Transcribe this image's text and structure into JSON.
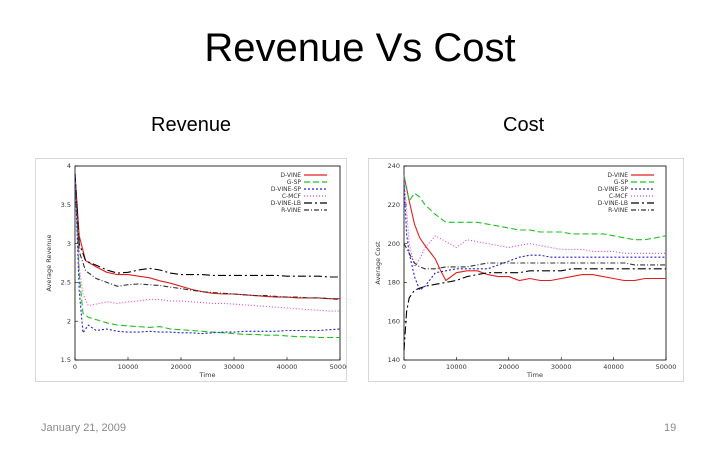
{
  "slide": {
    "title": "Revenue Vs Cost",
    "footer_date": "January 21, 2009",
    "page_number": "19"
  },
  "chart_data": [
    {
      "type": "line",
      "panel_title": "Revenue",
      "xlabel": "Time",
      "ylabel": "Average Revenue",
      "xlim": [
        0,
        50000
      ],
      "ylim": [
        1.5,
        4
      ],
      "xticks": [
        0,
        10000,
        20000,
        30000,
        40000,
        50000
      ],
      "xtick_labels": [
        "0",
        "10000",
        "20000",
        "30000",
        "40000",
        "50000"
      ],
      "yticks": [
        1.5,
        2,
        2.5,
        3,
        3.5,
        4
      ],
      "ytick_labels": [
        "1.5",
        "2",
        "2.5",
        "3",
        "3.5",
        "4"
      ],
      "grid": false,
      "legend_position": "top-right",
      "series": [
        {
          "name": "D-VINE",
          "color": "#e02020",
          "dash": "solid",
          "x": [
            0,
            800,
            2000,
            4000,
            6000,
            8000,
            10000,
            12000,
            14000,
            16000,
            18000,
            20000,
            22000,
            24000,
            26000,
            28000,
            30000,
            32000,
            34000,
            36000,
            38000,
            40000,
            42000,
            44000,
            46000,
            48000,
            50000
          ],
          "y": [
            3.9,
            3.1,
            2.78,
            2.7,
            2.63,
            2.6,
            2.6,
            2.58,
            2.56,
            2.52,
            2.49,
            2.45,
            2.41,
            2.38,
            2.36,
            2.35,
            2.35,
            2.34,
            2.33,
            2.32,
            2.31,
            2.31,
            2.3,
            2.3,
            2.3,
            2.29,
            2.29
          ]
        },
        {
          "name": "G-SP",
          "color": "#20c020",
          "dash": "6,3",
          "x": [
            0,
            800,
            1500,
            2500,
            4000,
            6000,
            8000,
            10000,
            12000,
            14000,
            16000,
            18000,
            20000,
            22000,
            24000,
            26000,
            28000,
            30000,
            32000,
            34000,
            36000,
            38000,
            40000,
            42000,
            44000,
            46000,
            48000,
            50000
          ],
          "y": [
            3.9,
            2.6,
            2.1,
            2.05,
            2.02,
            1.98,
            1.95,
            1.94,
            1.93,
            1.92,
            1.93,
            1.9,
            1.89,
            1.88,
            1.87,
            1.86,
            1.85,
            1.84,
            1.83,
            1.83,
            1.82,
            1.82,
            1.81,
            1.8,
            1.8,
            1.79,
            1.79,
            1.79
          ]
        },
        {
          "name": "D-VINE-SP",
          "color": "#2020d0",
          "dash": "2,2",
          "x": [
            0,
            800,
            1500,
            2500,
            4000,
            6000,
            8000,
            10000,
            12000,
            14000,
            16000,
            18000,
            20000,
            22000,
            24000,
            26000,
            28000,
            30000,
            32000,
            34000,
            36000,
            38000,
            40000,
            42000,
            44000,
            46000,
            48000,
            50000
          ],
          "y": [
            3.9,
            2.4,
            1.85,
            1.95,
            1.88,
            1.9,
            1.87,
            1.86,
            1.86,
            1.87,
            1.86,
            1.86,
            1.85,
            1.85,
            1.84,
            1.85,
            1.86,
            1.86,
            1.87,
            1.87,
            1.87,
            1.87,
            1.88,
            1.88,
            1.88,
            1.88,
            1.89,
            1.9
          ]
        },
        {
          "name": "C-MCF",
          "color": "#e040e0",
          "dash": "1,2",
          "x": [
            0,
            800,
            1500,
            2500,
            4000,
            6000,
            8000,
            10000,
            12000,
            14000,
            16000,
            18000,
            20000,
            22000,
            24000,
            26000,
            28000,
            30000,
            32000,
            34000,
            36000,
            38000,
            40000,
            42000,
            44000,
            46000,
            48000,
            50000
          ],
          "y": [
            3.9,
            2.7,
            2.35,
            2.2,
            2.22,
            2.25,
            2.23,
            2.25,
            2.26,
            2.28,
            2.28,
            2.26,
            2.26,
            2.25,
            2.24,
            2.23,
            2.23,
            2.22,
            2.21,
            2.2,
            2.19,
            2.18,
            2.17,
            2.16,
            2.15,
            2.14,
            2.13,
            2.13
          ]
        },
        {
          "name": "D-VINE-LB",
          "color": "#000000",
          "dash": "8,3,2,3",
          "x": [
            0,
            800,
            2000,
            4000,
            6000,
            8000,
            10000,
            12000,
            14000,
            16000,
            18000,
            20000,
            22000,
            24000,
            26000,
            28000,
            30000,
            32000,
            34000,
            36000,
            38000,
            40000,
            42000,
            44000,
            46000,
            48000,
            50000
          ],
          "y": [
            3.9,
            3.0,
            2.78,
            2.72,
            2.66,
            2.62,
            2.63,
            2.66,
            2.68,
            2.66,
            2.62,
            2.6,
            2.6,
            2.6,
            2.59,
            2.59,
            2.59,
            2.59,
            2.59,
            2.59,
            2.59,
            2.58,
            2.58,
            2.58,
            2.58,
            2.57,
            2.57
          ]
        },
        {
          "name": "R-VINE",
          "color": "#333333",
          "dash": "5,2,1,2",
          "x": [
            0,
            800,
            2000,
            3000,
            4000,
            6000,
            8000,
            10000,
            12000,
            14000,
            16000,
            18000,
            20000,
            22000,
            24000,
            26000,
            28000,
            30000,
            32000,
            34000,
            36000,
            38000,
            40000,
            42000,
            44000,
            46000,
            48000,
            50000
          ],
          "y": [
            3.9,
            2.9,
            2.65,
            2.6,
            2.55,
            2.5,
            2.45,
            2.47,
            2.48,
            2.47,
            2.46,
            2.44,
            2.42,
            2.4,
            2.38,
            2.37,
            2.36,
            2.35,
            2.34,
            2.33,
            2.33,
            2.32,
            2.31,
            2.31,
            2.3,
            2.3,
            2.29,
            2.28
          ]
        }
      ]
    },
    {
      "type": "line",
      "panel_title": "Cost",
      "xlabel": "Time",
      "ylabel": "Average Cost",
      "xlim": [
        0,
        50000
      ],
      "ylim": [
        140,
        240
      ],
      "xticks": [
        0,
        10000,
        20000,
        30000,
        40000,
        50000
      ],
      "xtick_labels": [
        "0",
        "10000",
        "20000",
        "30000",
        "40000",
        "50000"
      ],
      "yticks": [
        140,
        160,
        180,
        200,
        220,
        240
      ],
      "ytick_labels": [
        "140",
        "160",
        "180",
        "200",
        "220",
        "240"
      ],
      "grid": false,
      "legend_position": "top-right",
      "series": [
        {
          "name": "D-VINE",
          "color": "#e02020",
          "dash": "solid",
          "x": [
            0,
            1000,
            2000,
            3000,
            4000,
            6000,
            7000,
            8000,
            10000,
            12000,
            14000,
            16000,
            18000,
            20000,
            22000,
            24000,
            26000,
            28000,
            30000,
            32000,
            34000,
            36000,
            38000,
            40000,
            42000,
            44000,
            46000,
            48000,
            50000
          ],
          "y": [
            235,
            222,
            210,
            203,
            199,
            192,
            186,
            181,
            185,
            186,
            186,
            184,
            183,
            183,
            181,
            182,
            181,
            181,
            182,
            183,
            184,
            184,
            183,
            182,
            181,
            181,
            182,
            182,
            182
          ]
        },
        {
          "name": "G-SP",
          "color": "#20c020",
          "dash": "6,3",
          "x": [
            0,
            1000,
            2000,
            3000,
            4000,
            6000,
            8000,
            10000,
            12000,
            14000,
            16000,
            18000,
            20000,
            22000,
            24000,
            26000,
            28000,
            30000,
            32000,
            34000,
            36000,
            38000,
            40000,
            42000,
            44000,
            46000,
            48000,
            50000
          ],
          "y": [
            235,
            222,
            226,
            224,
            220,
            215,
            211,
            211,
            211,
            211,
            210,
            209,
            208,
            207,
            207,
            206,
            206,
            206,
            205,
            205,
            205,
            205,
            204,
            203,
            202,
            202,
            203,
            204
          ]
        },
        {
          "name": "D-VINE-SP",
          "color": "#2020d0",
          "dash": "2,2",
          "x": [
            0,
            500,
            1000,
            2000,
            3000,
            4000,
            6000,
            8000,
            10000,
            12000,
            14000,
            16000,
            18000,
            20000,
            22000,
            24000,
            26000,
            28000,
            30000,
            32000,
            34000,
            36000,
            38000,
            40000,
            42000,
            44000,
            46000,
            48000,
            50000
          ],
          "y": [
            232,
            205,
            195,
            183,
            176,
            178,
            185,
            186,
            187,
            187,
            187,
            187,
            189,
            191,
            193,
            194,
            194,
            193,
            193,
            193,
            193,
            193,
            193,
            193,
            193,
            193,
            193,
            193,
            193
          ]
        },
        {
          "name": "C-MCF",
          "color": "#e040e0",
          "dash": "1,2",
          "x": [
            0,
            1000,
            2000,
            3000,
            4000,
            6000,
            8000,
            10000,
            12000,
            14000,
            16000,
            18000,
            20000,
            22000,
            24000,
            26000,
            28000,
            30000,
            32000,
            34000,
            36000,
            38000,
            40000,
            42000,
            44000,
            46000,
            48000,
            50000
          ],
          "y": [
            235,
            200,
            188,
            192,
            198,
            204,
            201,
            198,
            202,
            201,
            200,
            199,
            198,
            199,
            200,
            199,
            198,
            197,
            197,
            197,
            196,
            196,
            196,
            195,
            195,
            195,
            195,
            195
          ]
        },
        {
          "name": "D-VINE-LB",
          "color": "#000000",
          "dash": "8,3,2,3",
          "x": [
            0,
            500,
            1000,
            2000,
            3000,
            4000,
            6000,
            8000,
            10000,
            12000,
            14000,
            16000,
            18000,
            20000,
            22000,
            24000,
            26000,
            28000,
            30000,
            32000,
            34000,
            36000,
            38000,
            40000,
            42000,
            44000,
            46000,
            48000,
            50000
          ],
          "y": [
            145,
            165,
            172,
            176,
            177,
            178,
            179,
            180,
            181,
            183,
            184,
            185,
            185,
            185,
            185,
            186,
            186,
            186,
            186,
            187,
            187,
            187,
            187,
            187,
            187,
            187,
            187,
            187,
            187
          ]
        },
        {
          "name": "R-VINE",
          "color": "#333333",
          "dash": "5,2,1,2",
          "x": [
            0,
            1000,
            2000,
            3000,
            4000,
            6000,
            8000,
            10000,
            12000,
            14000,
            16000,
            18000,
            20000,
            22000,
            24000,
            26000,
            28000,
            30000,
            32000,
            34000,
            36000,
            38000,
            40000,
            42000,
            44000,
            46000,
            48000,
            50000
          ],
          "y": [
            200,
            195,
            190,
            188,
            187,
            187,
            188,
            188,
            188,
            189,
            190,
            190,
            190,
            190,
            190,
            190,
            190,
            190,
            190,
            190,
            190,
            190,
            190,
            190,
            189,
            189,
            189,
            189
          ]
        }
      ]
    }
  ]
}
